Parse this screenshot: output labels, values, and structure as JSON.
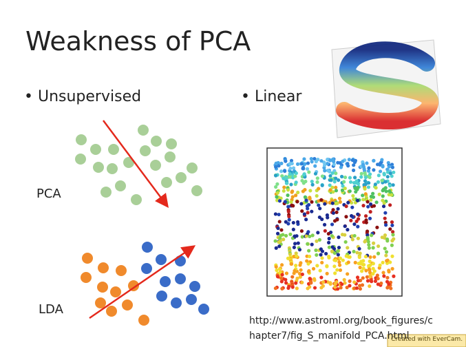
{
  "title": "Weakness of PCA",
  "bullets": [
    "Unsupervised",
    "Linear"
  ],
  "labels": {
    "pca": "PCA",
    "lda": "LDA"
  },
  "source": [
    "http://www.astroml.org/book_figures/c",
    "hapter7/fig_S_manifold_PCA.html"
  ],
  "watermark": "Created with EverCam."
}
